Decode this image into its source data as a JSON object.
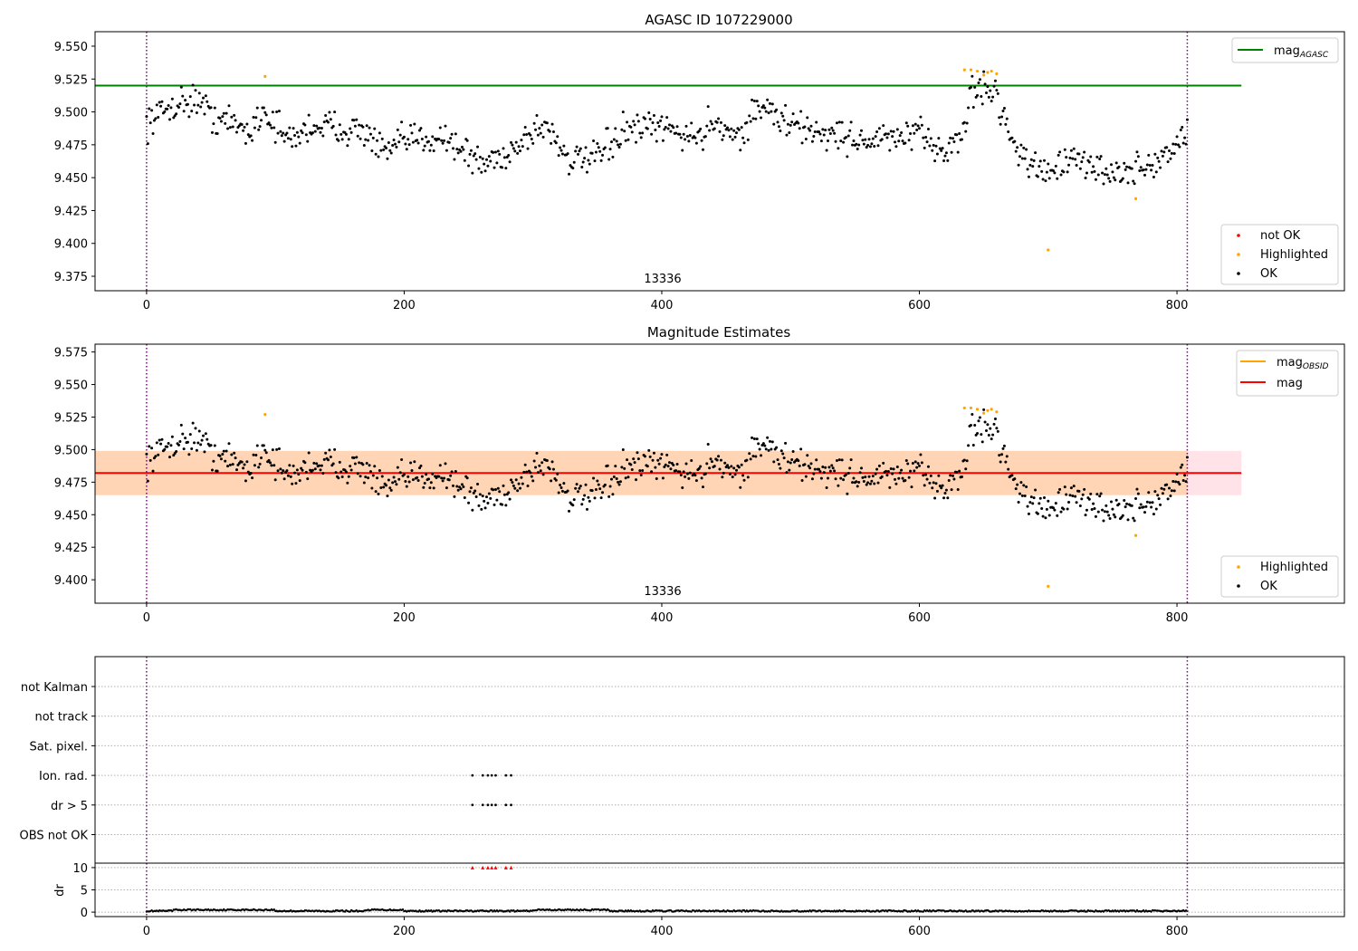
{
  "chart_data": [
    {
      "type": "scatter",
      "title": "AGASC ID 107229000",
      "obsid_label": "13336",
      "xlim": [
        -40,
        930
      ],
      "ylim": [
        9.364,
        9.561
      ],
      "x_ticks": [
        0,
        200,
        400,
        600,
        800
      ],
      "y_ticks": [
        9.375,
        9.4,
        9.425,
        9.45,
        9.475,
        9.5,
        9.525,
        9.55
      ],
      "obs_boundaries": [
        0,
        808
      ],
      "reference_lines": [
        {
          "name": "mag",
          "sub": "AGASC",
          "value": 9.52,
          "x_range": [
            -40,
            850
          ],
          "color": "#008000"
        }
      ],
      "legend_top": [
        {
          "name": "mag",
          "sub": "AGASC",
          "color": "#008000",
          "kind": "line"
        }
      ],
      "legend_bottom": [
        {
          "name": "not OK",
          "color": "#ff0000",
          "kind": "marker"
        },
        {
          "name": "Highlighted",
          "color": "#ffa500",
          "kind": "marker"
        },
        {
          "name": "OK",
          "color": "#000000",
          "kind": "marker"
        }
      ],
      "series_profile": [
        [
          0,
          9.492
        ],
        [
          20,
          9.505
        ],
        [
          40,
          9.51
        ],
        [
          50,
          9.497
        ],
        [
          70,
          9.49
        ],
        [
          80,
          9.484
        ],
        [
          90,
          9.502
        ],
        [
          110,
          9.478
        ],
        [
          130,
          9.49
        ],
        [
          150,
          9.488
        ],
        [
          170,
          9.485
        ],
        [
          185,
          9.468
        ],
        [
          200,
          9.478
        ],
        [
          230,
          9.482
        ],
        [
          260,
          9.46
        ],
        [
          280,
          9.468
        ],
        [
          300,
          9.485
        ],
        [
          310,
          9.49
        ],
        [
          330,
          9.462
        ],
        [
          350,
          9.465
        ],
        [
          370,
          9.485
        ],
        [
          400,
          9.488
        ],
        [
          430,
          9.48
        ],
        [
          440,
          9.495
        ],
        [
          460,
          9.48
        ],
        [
          475,
          9.505
        ],
        [
          500,
          9.49
        ],
        [
          520,
          9.485
        ],
        [
          560,
          9.478
        ],
        [
          600,
          9.482
        ],
        [
          620,
          9.47
        ],
        [
          635,
          9.484
        ],
        [
          640,
          9.518
        ],
        [
          660,
          9.515
        ],
        [
          670,
          9.482
        ],
        [
          690,
          9.455
        ],
        [
          720,
          9.462
        ],
        [
          760,
          9.452
        ],
        [
          790,
          9.465
        ],
        [
          808,
          9.485
        ]
      ],
      "highlighted_points": [
        [
          92,
          9.527
        ],
        [
          635,
          9.532
        ],
        [
          640,
          9.532
        ],
        [
          645,
          9.531
        ],
        [
          650,
          9.528
        ],
        [
          653,
          9.53
        ],
        [
          656,
          9.531
        ],
        [
          660,
          9.529
        ],
        [
          700,
          9.395
        ],
        [
          768,
          9.434
        ]
      ]
    },
    {
      "type": "scatter",
      "title": "Magnitude Estimates",
      "obsid_label": "13336",
      "xlim": [
        -40,
        930
      ],
      "ylim": [
        9.382,
        9.581
      ],
      "x_ticks": [
        0,
        200,
        400,
        600,
        800
      ],
      "y_ticks": [
        9.4,
        9.425,
        9.45,
        9.475,
        9.5,
        9.525,
        9.55,
        9.575
      ],
      "obs_boundaries": [
        0,
        808
      ],
      "reference_lines": [
        {
          "name": "mag",
          "value": 9.482,
          "x_range": [
            -40,
            850
          ],
          "color": "#ff0000"
        }
      ],
      "bands": [
        {
          "y_range": [
            9.465,
            9.499
          ],
          "x_range": [
            -40,
            850
          ],
          "color": "#ffc0cb",
          "opacity": 0.45
        },
        {
          "y_range": [
            9.465,
            9.499
          ],
          "x_range": [
            -40,
            808
          ],
          "color": "#ffa500",
          "opacity": 0.22
        }
      ],
      "legend_top": [
        {
          "name": "mag",
          "sub": "OBSID",
          "color": "#ffa500",
          "kind": "line"
        },
        {
          "name": "mag",
          "sub": "",
          "color": "#ff0000",
          "kind": "line"
        }
      ],
      "legend_bottom": [
        {
          "name": "Highlighted",
          "color": "#ffa500",
          "kind": "marker"
        },
        {
          "name": "OK",
          "color": "#000000",
          "kind": "marker"
        }
      ],
      "highlighted_points": [
        [
          92,
          9.527
        ],
        [
          635,
          9.532
        ],
        [
          640,
          9.532
        ],
        [
          645,
          9.531
        ],
        [
          650,
          9.528
        ],
        [
          653,
          9.53
        ],
        [
          656,
          9.531
        ],
        [
          660,
          9.529
        ],
        [
          700,
          9.395
        ],
        [
          768,
          9.434
        ]
      ]
    },
    {
      "type": "scatter",
      "xlim": [
        -40,
        930
      ],
      "x_ticks": [
        0,
        200,
        400,
        600,
        800
      ],
      "obs_boundaries": [
        0,
        808
      ],
      "flag_labels": [
        "not Kalman",
        "not track",
        "Sat. pixel.",
        "Ion. rad.",
        "dr > 5",
        "OBS not OK"
      ],
      "flag_events": [
        {
          "flag": "Ion. rad.",
          "x": [
            253,
            261,
            265,
            268,
            271,
            279,
            283
          ]
        },
        {
          "flag": "dr > 5",
          "x": [
            253,
            261,
            265,
            268,
            271,
            279,
            283
          ]
        }
      ],
      "dr_ylabel": "dr",
      "dr_ylim": [
        -1,
        11
      ],
      "dr_y_ticks": [
        0,
        5,
        10
      ],
      "dr_clipped_points": [
        253,
        261,
        265,
        268,
        271,
        279,
        283
      ],
      "dr_clip_value": 10
    }
  ]
}
